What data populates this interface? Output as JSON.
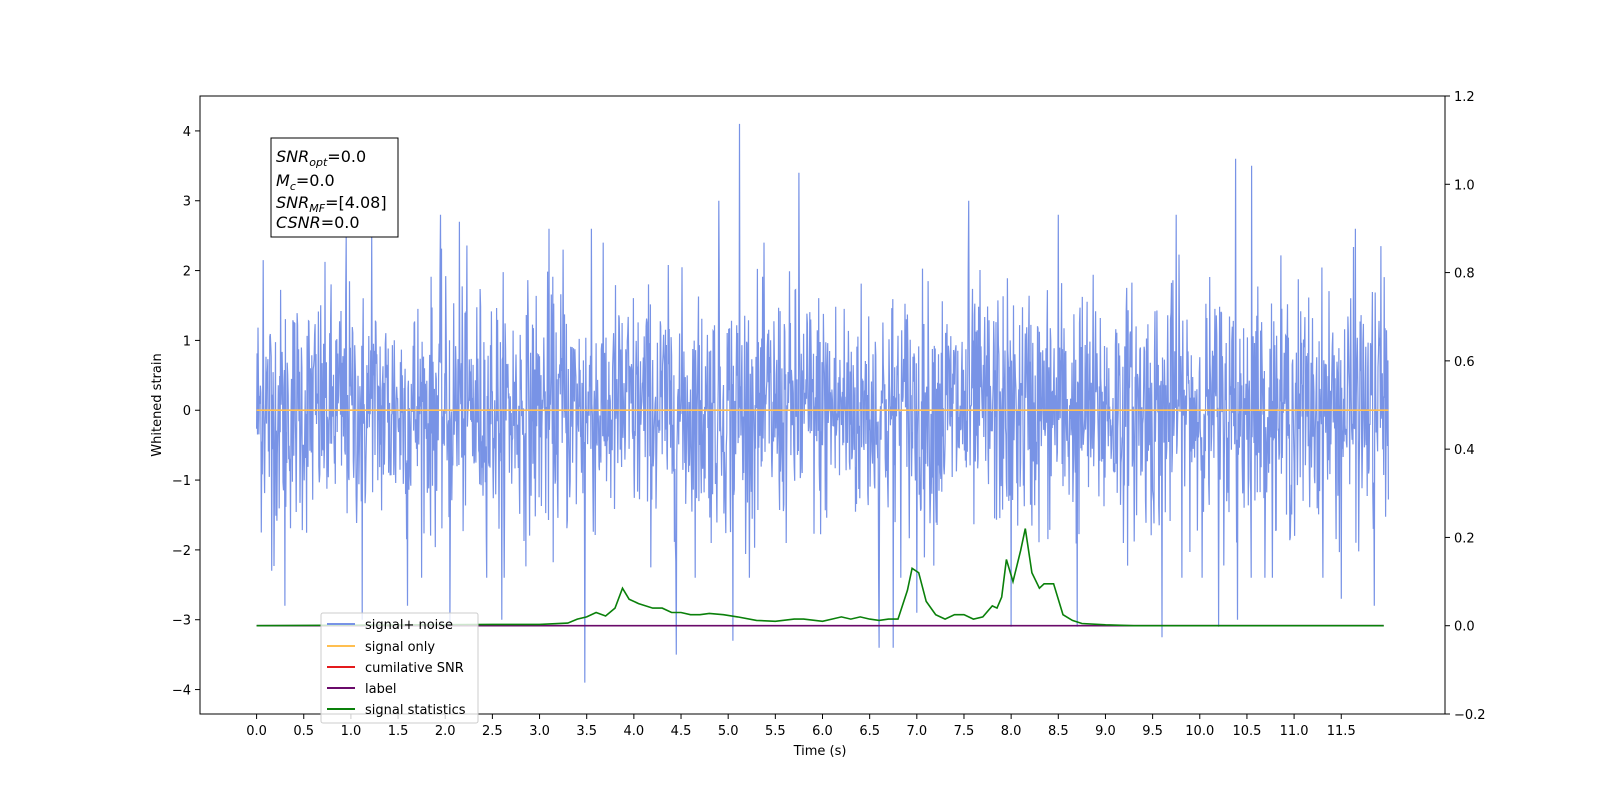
{
  "chart_data": {
    "type": "line",
    "xlabel": "Time (s)",
    "ylabel": "Whitened strain",
    "xlim": [
      -0.6,
      12.6
    ],
    "ylim": [
      -4.35,
      4.5
    ],
    "ylim_right": [
      -0.2,
      1.2
    ],
    "x_ticks": [
      "0.0",
      "0.5",
      "1.0",
      "1.5",
      "2.0",
      "2.5",
      "3.0",
      "3.5",
      "4.0",
      "4.5",
      "5.0",
      "5.5",
      "6.0",
      "6.5",
      "7.0",
      "7.5",
      "8.0",
      "8.5",
      "9.0",
      "9.5",
      "10.0",
      "10.5",
      "11.0",
      "11.5"
    ],
    "y_ticks": [
      "4",
      "3",
      "2",
      "1",
      "0",
      "−1",
      "−2",
      "−3",
      "−4"
    ],
    "y_ticks_right": [
      "1.2",
      "1.0",
      "0.8",
      "0.6",
      "0.4",
      "0.2",
      "0.0",
      "−0.2"
    ],
    "grid": false,
    "legend_position": "lower-left",
    "info_box": {
      "snr_opt": {
        "base": "SNR",
        "sub": "opt",
        "value": "=0.0"
      },
      "mc": {
        "base": "M",
        "sub": "c",
        "value": "=0.0"
      },
      "snr_mf": {
        "base": "SNR",
        "sub": "MF",
        "value": "=[4.08]"
      },
      "csnr": {
        "base": "CSNR",
        "value": "=0.0"
      }
    },
    "series": [
      {
        "name": "signal+ noise",
        "color": "#7893e6",
        "axis": "left",
        "kind": "noise",
        "x_range": [
          0.0,
          12.0
        ],
        "spikes": [
          [
            0.07,
            2.15
          ],
          [
            0.16,
            -2.3
          ],
          [
            0.3,
            -2.8
          ],
          [
            0.95,
            2.5
          ],
          [
            1.12,
            -3.0
          ],
          [
            1.22,
            2.55
          ],
          [
            1.6,
            -2.8
          ],
          [
            1.95,
            2.8
          ],
          [
            2.05,
            -3.1
          ],
          [
            2.15,
            2.7
          ],
          [
            2.6,
            -3.0
          ],
          [
            3.1,
            2.6
          ],
          [
            3.25,
            2.3
          ],
          [
            3.48,
            -3.9
          ],
          [
            3.55,
            2.6
          ],
          [
            4.45,
            -3.5
          ],
          [
            4.9,
            3.0
          ],
          [
            5.12,
            4.1
          ],
          [
            5.05,
            -3.3
          ],
          [
            5.75,
            3.4
          ],
          [
            6.6,
            -3.4
          ],
          [
            6.75,
            -3.4
          ],
          [
            7.0,
            -2.9
          ],
          [
            7.55,
            3.0
          ],
          [
            8.0,
            -3.1
          ],
          [
            8.5,
            2.8
          ],
          [
            8.7,
            -3.1
          ],
          [
            9.6,
            -3.25
          ],
          [
            9.75,
            2.8
          ],
          [
            10.2,
            -3.1
          ],
          [
            10.38,
            3.6
          ],
          [
            10.4,
            -3.0
          ],
          [
            10.55,
            3.5
          ],
          [
            11.5,
            -2.7
          ],
          [
            11.65,
            2.6
          ],
          [
            11.85,
            -2.8
          ],
          [
            11.92,
            2.35
          ]
        ]
      },
      {
        "name": "signal only",
        "color": "#ffbf50",
        "axis": "left",
        "x": [
          0.0,
          12.0
        ],
        "y": [
          0.0,
          0.0
        ]
      },
      {
        "name": "cumilative SNR",
        "color": "#e41a1c",
        "axis": "right",
        "x": [],
        "y": []
      },
      {
        "name": "label",
        "color": "#6a0a6a",
        "axis": "right",
        "x": [
          0.0,
          11.95
        ],
        "y": [
          0.0,
          0.0
        ]
      },
      {
        "name": "signal statistics",
        "color": "#0a800a",
        "axis": "right",
        "x": [
          0.0,
          2.5,
          3.0,
          3.3,
          3.4,
          3.5,
          3.6,
          3.7,
          3.8,
          3.88,
          3.95,
          4.05,
          4.2,
          4.3,
          4.4,
          4.5,
          4.6,
          4.7,
          4.8,
          4.95,
          5.1,
          5.3,
          5.5,
          5.7,
          5.8,
          6.0,
          6.1,
          6.2,
          6.3,
          6.4,
          6.5,
          6.6,
          6.7,
          6.8,
          6.9,
          6.95,
          7.02,
          7.1,
          7.2,
          7.3,
          7.4,
          7.5,
          7.6,
          7.7,
          7.8,
          7.85,
          7.9,
          7.95,
          8.02,
          8.1,
          8.15,
          8.22,
          8.3,
          8.35,
          8.45,
          8.55,
          8.65,
          8.75,
          9.0,
          9.3,
          10.0,
          11.95
        ],
        "y": [
          0.0,
          0.003,
          0.003,
          0.006,
          0.015,
          0.02,
          0.03,
          0.022,
          0.04,
          0.085,
          0.06,
          0.05,
          0.04,
          0.04,
          0.03,
          0.03,
          0.025,
          0.025,
          0.028,
          0.025,
          0.02,
          0.012,
          0.01,
          0.015,
          0.015,
          0.01,
          0.015,
          0.02,
          0.015,
          0.02,
          0.015,
          0.012,
          0.015,
          0.015,
          0.08,
          0.13,
          0.12,
          0.055,
          0.025,
          0.015,
          0.025,
          0.025,
          0.015,
          0.02,
          0.045,
          0.04,
          0.065,
          0.15,
          0.1,
          0.17,
          0.22,
          0.12,
          0.085,
          0.095,
          0.095,
          0.025,
          0.012,
          0.005,
          0.002,
          0.0,
          0.0,
          0.0
        ]
      }
    ]
  }
}
